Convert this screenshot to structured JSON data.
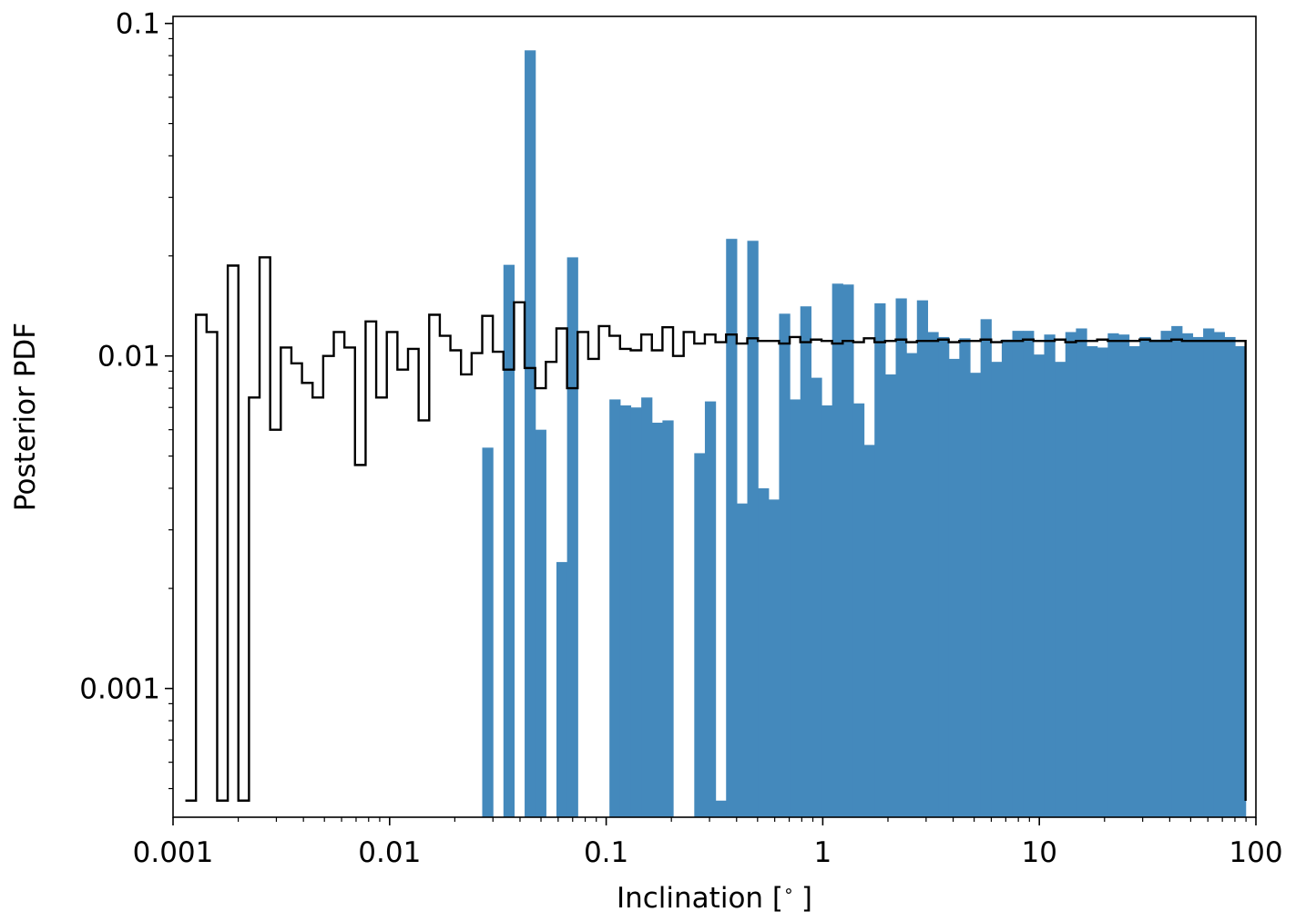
{
  "chart_data": {
    "type": "histogram",
    "xlabel": "Inclination [$^\\circ$]",
    "xlabel_parts": {
      "prefix": "Inclination [",
      "degree": "∘",
      "suffix": "]"
    },
    "ylabel": "Posterior PDF",
    "xscale": "log",
    "yscale": "log",
    "xlim": [
      0.001,
      100
    ],
    "ylim": [
      0.00041,
      0.105
    ],
    "x_ticks": [
      {
        "value": 0.001,
        "label": "0.001"
      },
      {
        "value": 0.01,
        "label": "0.01"
      },
      {
        "value": 0.1,
        "label": "0.1"
      },
      {
        "value": 1,
        "label": "1"
      },
      {
        "value": 10,
        "label": "10"
      },
      {
        "value": 100,
        "label": "100"
      }
    ],
    "y_ticks": [
      {
        "value": 0.001,
        "label": "0.001"
      },
      {
        "value": 0.01,
        "label": "0.01"
      },
      {
        "value": 0.1,
        "label": "0.1"
      }
    ],
    "bin_start": 0.00114,
    "bin_end": 89.6,
    "bin_count": 100,
    "colors": {
      "filled": "#4489bc",
      "step": "#000000"
    },
    "series": [
      {
        "style": "filled",
        "values": [
          0,
          0,
          0,
          0,
          0,
          0,
          0,
          0,
          0,
          0,
          0,
          0,
          0,
          0,
          0,
          0,
          0,
          0,
          0,
          0,
          0,
          0,
          0,
          0,
          0,
          0,
          0,
          0,
          0.0053,
          0,
          0.0188,
          0,
          0.083,
          0.006,
          0,
          0.0024,
          0.0198,
          0,
          0,
          0,
          0.0074,
          0.0071,
          0.007,
          0.0075,
          0.0063,
          0.0064,
          0,
          0,
          0.0051,
          0.0073,
          0.00046,
          0.0225,
          0.0036,
          0.0222,
          0.004,
          0.0037,
          0.0134,
          0.0074,
          0.0141,
          0.0086,
          0.0071,
          0.0165,
          0.0164,
          0.0072,
          0.0054,
          0.0144,
          0.0088,
          0.0149,
          0.0102,
          0.0147,
          0.0118,
          0.0114,
          0.0098,
          0.0113,
          0.0089,
          0.0129,
          0.0096,
          0.0112,
          0.0119,
          0.0119,
          0.0101,
          0.0116,
          0.0096,
          0.0118,
          0.0121,
          0.0107,
          0.0106,
          0.0117,
          0.0116,
          0.0107,
          0.0114,
          0.0112,
          0.0119,
          0.0123,
          0.0117,
          0.0114,
          0.0121,
          0.0118,
          0.0114,
          0.0107,
          0.0112
        ]
      },
      {
        "style": "step",
        "values": [
          0.00046,
          0.0133,
          0.0118,
          0.00046,
          0.0187,
          0.00046,
          0.0075,
          0.0198,
          0.006,
          0.0106,
          0.0095,
          0.0083,
          0.0075,
          0.01,
          0.0118,
          0.0106,
          0.0047,
          0.0127,
          0.0075,
          0.0118,
          0.0091,
          0.0105,
          0.0064,
          0.0133,
          0.0115,
          0.0104,
          0.0088,
          0.0102,
          0.0132,
          0.0103,
          0.0091,
          0.0145,
          0.0092,
          0.008,
          0.0096,
          0.0121,
          0.008,
          0.0118,
          0.0098,
          0.0123,
          0.0115,
          0.0105,
          0.0104,
          0.0116,
          0.0104,
          0.0122,
          0.01,
          0.0118,
          0.0109,
          0.0116,
          0.011,
          0.0116,
          0.0109,
          0.0113,
          0.0111,
          0.0111,
          0.0109,
          0.0114,
          0.011,
          0.0112,
          0.0111,
          0.0109,
          0.0111,
          0.011,
          0.0113,
          0.011,
          0.0111,
          0.0112,
          0.011,
          0.0111,
          0.0111,
          0.0112,
          0.011,
          0.0111,
          0.0111,
          0.0112,
          0.011,
          0.0111,
          0.0111,
          0.0112,
          0.0111,
          0.0111,
          0.0112,
          0.011,
          0.0111,
          0.0111,
          0.0112,
          0.0111,
          0.0111,
          0.0111,
          0.0112,
          0.0111,
          0.0111,
          0.0112,
          0.0111,
          0.0111,
          0.0111,
          0.0111,
          0.0111,
          0.0111
        ]
      }
    ]
  }
}
